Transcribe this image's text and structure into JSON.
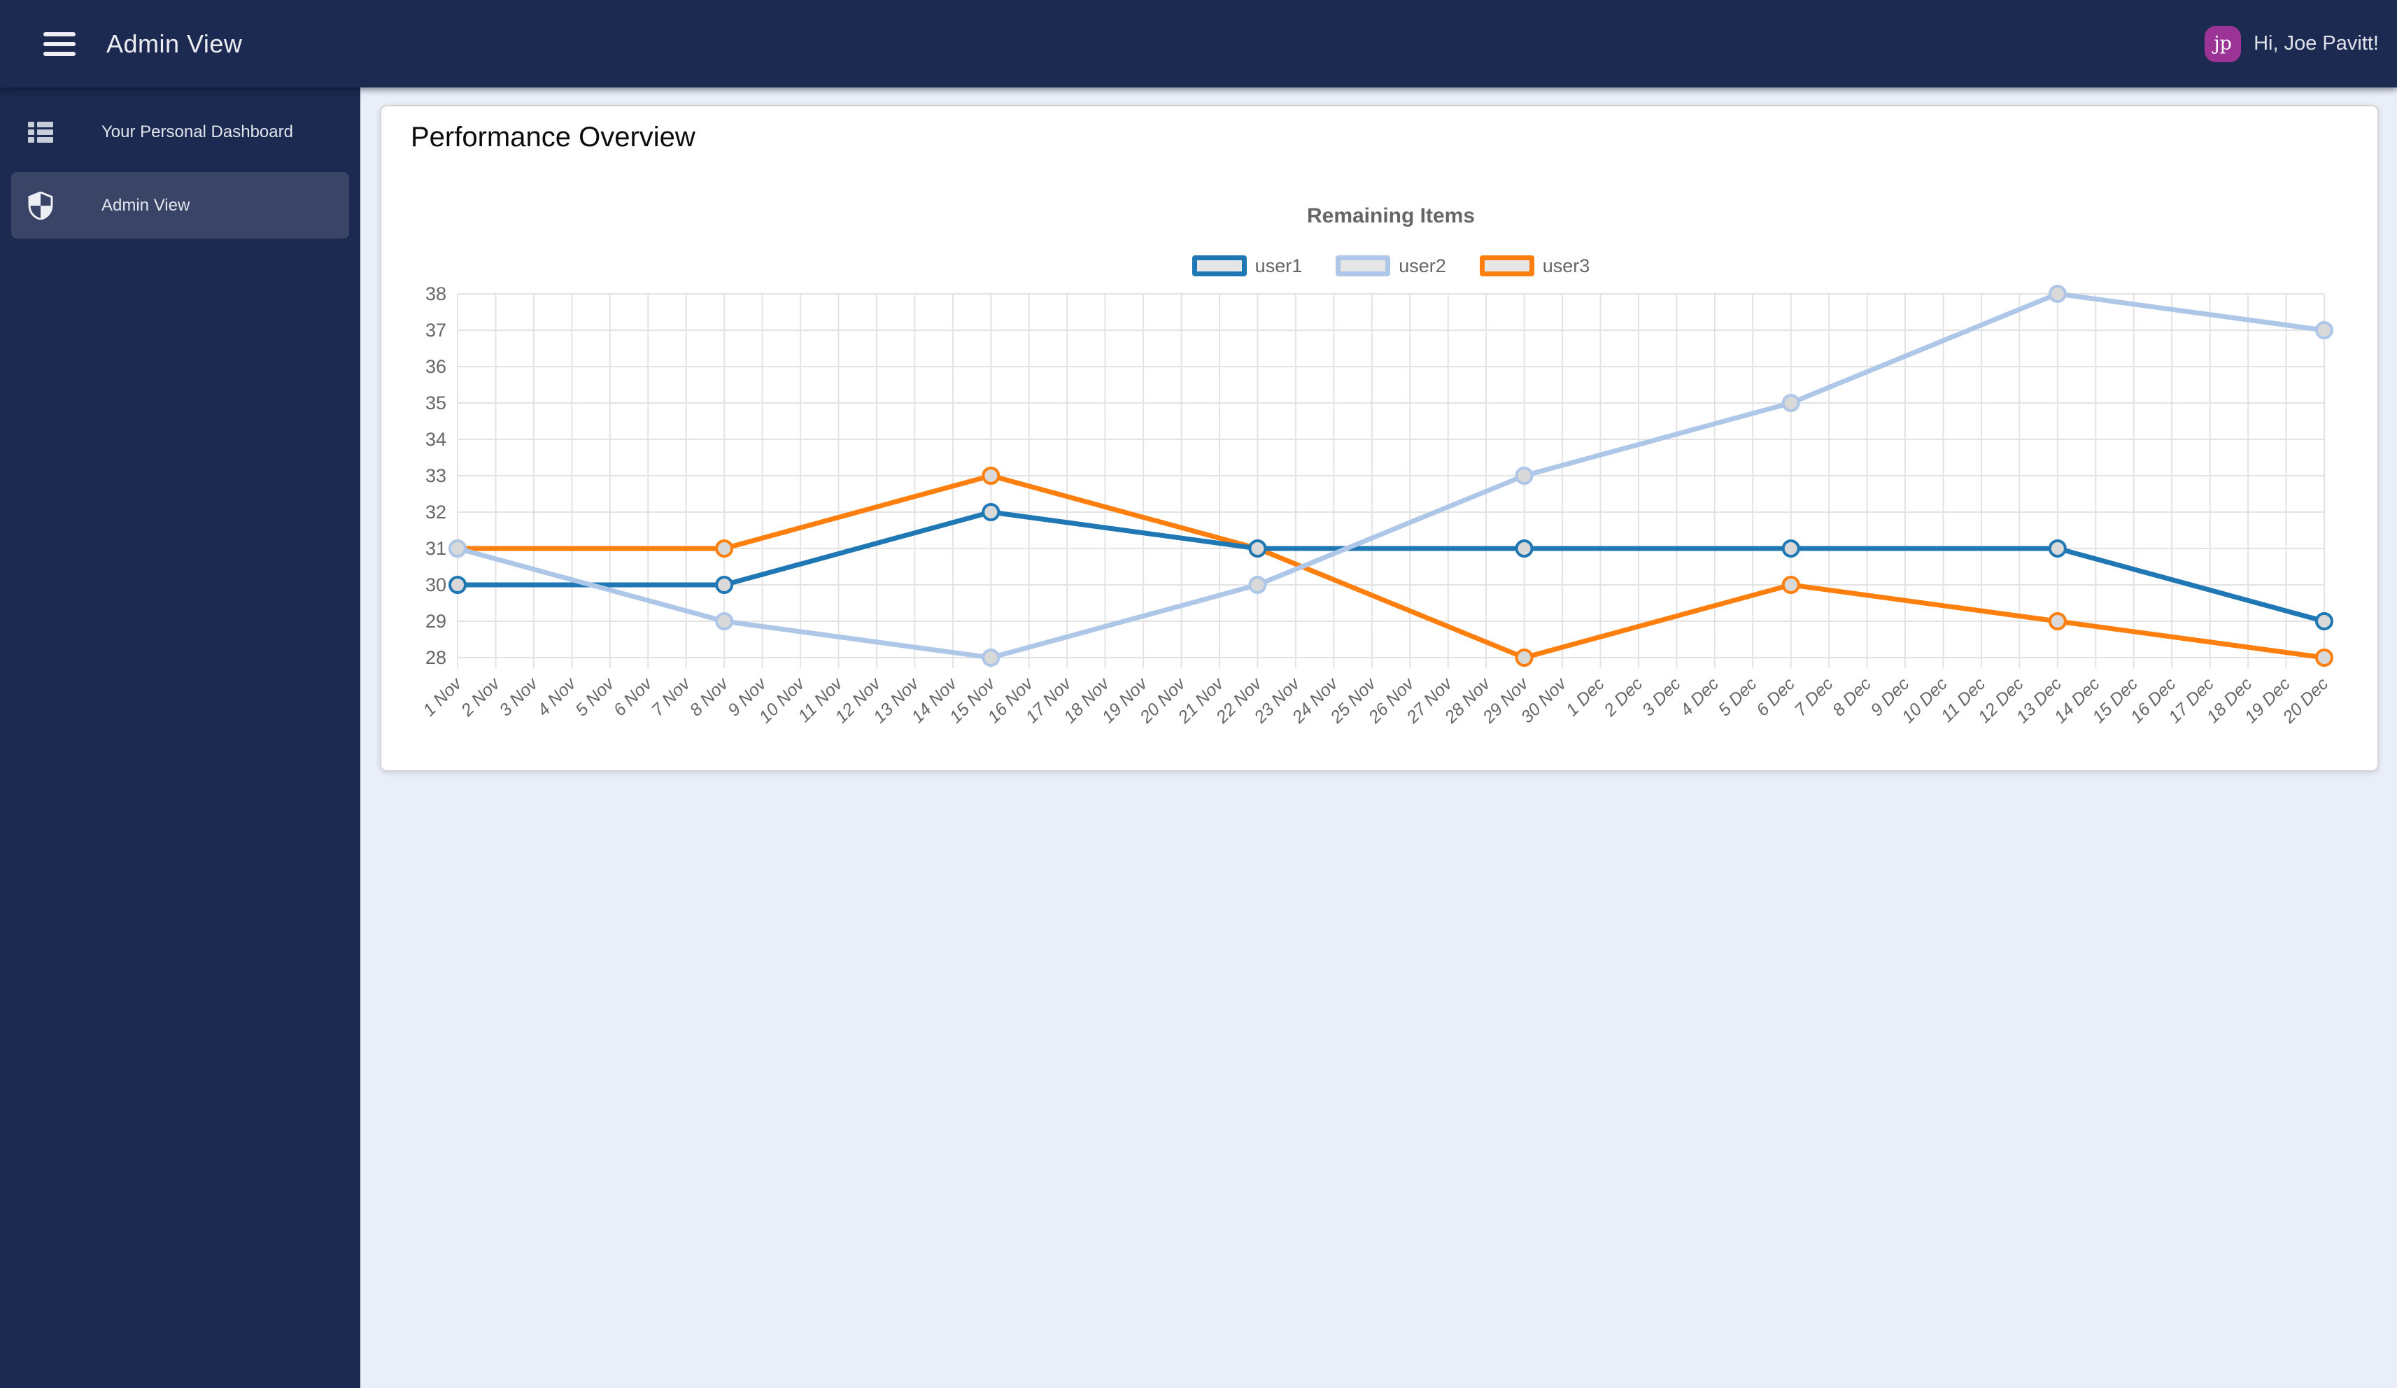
{
  "header": {
    "title": "Admin View",
    "greeting": "Hi, Joe Pavitt!",
    "avatar_initials": "jp",
    "avatar_color": "#9c3498"
  },
  "sidebar": {
    "items": [
      {
        "label": "Your Personal Dashboard",
        "icon": "dashboard-list-icon",
        "active": false
      },
      {
        "label": "Admin View",
        "icon": "shield-icon",
        "active": true
      }
    ]
  },
  "main": {
    "card_title": "Performance Overview"
  },
  "chart_data": {
    "type": "line",
    "title": "Remaining Items",
    "legend_position": "top",
    "grid": true,
    "ylim": [
      28,
      38
    ],
    "yticks": [
      28,
      29,
      30,
      31,
      32,
      33,
      34,
      35,
      36,
      37,
      38
    ],
    "categories": [
      "1 Nov",
      "2 Nov",
      "3 Nov",
      "4 Nov",
      "5 Nov",
      "6 Nov",
      "7 Nov",
      "8 Nov",
      "9 Nov",
      "10 Nov",
      "11 Nov",
      "12 Nov",
      "13 Nov",
      "14 Nov",
      "15 Nov",
      "16 Nov",
      "17 Nov",
      "18 Nov",
      "19 Nov",
      "20 Nov",
      "21 Nov",
      "22 Nov",
      "23 Nov",
      "24 Nov",
      "25 Nov",
      "26 Nov",
      "27 Nov",
      "28 Nov",
      "29 Nov",
      "30 Nov",
      "1 Dec",
      "2 Dec",
      "3 Dec",
      "4 Dec",
      "5 Dec",
      "6 Dec",
      "7 Dec",
      "8 Dec",
      "9 Dec",
      "10 Dec",
      "11 Dec",
      "12 Dec",
      "13 Dec",
      "14 Dec",
      "15 Dec",
      "16 Dec",
      "17 Dec",
      "18 Dec",
      "19 Dec",
      "20 Dec"
    ],
    "x_dates": [
      "1 Nov",
      "8 Nov",
      "15 Nov",
      "22 Nov",
      "29 Nov",
      "6 Dec",
      "13 Dec",
      "20 Dec"
    ],
    "marker_indices": [
      0,
      7,
      14,
      21,
      28,
      35,
      42,
      49
    ],
    "series": [
      {
        "name": "user1",
        "color": "#1f77b4",
        "values": [
          30,
          30,
          32,
          31,
          31,
          31,
          31,
          29
        ]
      },
      {
        "name": "user2",
        "color": "#aec7e8",
        "values": [
          31,
          29,
          28,
          30,
          33,
          35,
          38,
          37
        ]
      },
      {
        "name": "user3",
        "color": "#ff7f0e",
        "values": [
          31,
          31,
          33,
          31,
          28,
          30,
          29,
          28
        ]
      }
    ],
    "marker_fill": "#d9d9d9",
    "gridline_color": "#e3e3e3",
    "label_color": "#666666"
  }
}
